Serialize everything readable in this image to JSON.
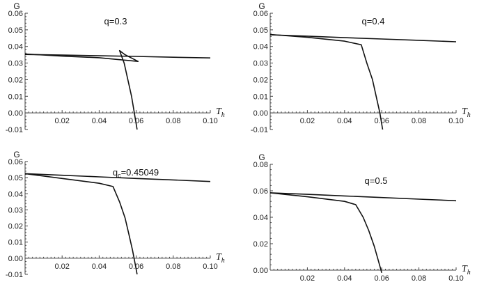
{
  "chart_data": [
    {
      "type": "line",
      "ylabel": "G",
      "xlabel": "T_h",
      "annotation": "q=0.3",
      "xlim": [
        0,
        0.1
      ],
      "ylim": [
        -0.01,
        0.06
      ],
      "xticks": [
        0.02,
        0.04,
        0.06,
        0.08,
        0.1
      ],
      "xtick_labels": [
        "0.02",
        "0.04",
        "0.06",
        "0.08",
        "0.10"
      ],
      "yticks": [
        -0.01,
        0.0,
        0.01,
        0.02,
        0.03,
        0.04,
        0.05,
        0.06
      ],
      "ytick_labels": [
        "-0.01",
        "0.00",
        "0.01",
        "0.02",
        "0.03",
        "0.04",
        "0.05",
        "0.06"
      ],
      "series": [
        {
          "x": [
            0.0,
            0.02,
            0.04,
            0.06,
            0.08,
            0.1
          ],
          "y": [
            0.0352,
            0.0348,
            0.0344,
            0.034,
            0.0335,
            0.0331
          ]
        },
        {
          "x": [
            0.0,
            0.02,
            0.04,
            0.061,
            0.054,
            0.051,
            0.0535,
            0.0555,
            0.0575,
            0.059,
            0.0605
          ],
          "y": [
            0.0355,
            0.0342,
            0.0332,
            0.031,
            0.035,
            0.0375,
            0.03,
            0.02,
            0.01,
            0.0,
            -0.01
          ]
        }
      ]
    },
    {
      "type": "line",
      "ylabel": "G",
      "xlabel": "T_h",
      "annotation": "q=0.4",
      "xlim": [
        0,
        0.1
      ],
      "ylim": [
        -0.01,
        0.06
      ],
      "xticks": [
        0.02,
        0.04,
        0.06,
        0.08,
        0.1
      ],
      "xtick_labels": [
        "0.02",
        "0.04",
        "0.06",
        "0.08",
        "0.10"
      ],
      "yticks": [
        -0.01,
        0.0,
        0.01,
        0.02,
        0.03,
        0.04,
        0.05,
        0.06
      ],
      "ytick_labels": [
        "-0.01",
        "0.00",
        "0.01",
        "0.02",
        "0.03",
        "0.04",
        "0.05",
        "0.06"
      ],
      "series": [
        {
          "x": [
            0.0,
            0.02,
            0.04,
            0.06,
            0.08,
            0.1
          ],
          "y": [
            0.047,
            0.0462,
            0.0453,
            0.0445,
            0.0437,
            0.0428
          ]
        },
        {
          "x": [
            0.0,
            0.02,
            0.04,
            0.049,
            0.052,
            0.055,
            0.057,
            0.059,
            0.0605
          ],
          "y": [
            0.0472,
            0.0455,
            0.0432,
            0.041,
            0.03,
            0.02,
            0.01,
            0.0,
            -0.01
          ]
        }
      ]
    },
    {
      "type": "line",
      "ylabel": "G",
      "xlabel": "T_h",
      "annotation": "q_c=0.45049",
      "xlim": [
        0,
        0.1
      ],
      "ylim": [
        -0.01,
        0.06
      ],
      "xticks": [
        0.02,
        0.04,
        0.06,
        0.08,
        0.1
      ],
      "xtick_labels": [
        "0.02",
        "0.04",
        "0.06",
        "0.08",
        "0.10"
      ],
      "yticks": [
        -0.01,
        0.0,
        0.01,
        0.02,
        0.03,
        0.04,
        0.05,
        0.06
      ],
      "ytick_labels": [
        "-0.01",
        "0.00",
        "0.01",
        "0.02",
        "0.03",
        "0.04",
        "0.05",
        "0.06"
      ],
      "series": [
        {
          "x": [
            0.0,
            0.02,
            0.04,
            0.06,
            0.08,
            0.1
          ],
          "y": [
            0.0525,
            0.0515,
            0.0505,
            0.0495,
            0.0486,
            0.0476
          ]
        },
        {
          "x": [
            0.0,
            0.02,
            0.04,
            0.0475,
            0.051,
            0.054,
            0.056,
            0.058,
            0.0595,
            0.0605
          ],
          "y": [
            0.0525,
            0.0495,
            0.0465,
            0.0445,
            0.035,
            0.025,
            0.015,
            0.005,
            -0.004,
            -0.01
          ]
        }
      ]
    },
    {
      "type": "line",
      "ylabel": "G",
      "xlabel": "T_h",
      "annotation": "q=0.5",
      "xlim": [
        0,
        0.1
      ],
      "ylim": [
        0.0,
        0.08
      ],
      "xticks": [
        0.02,
        0.04,
        0.06,
        0.08,
        0.1
      ],
      "xtick_labels": [
        "0.02",
        "0.04",
        "0.06",
        "0.08",
        "0.10"
      ],
      "yticks": [
        0.0,
        0.02,
        0.04,
        0.06,
        0.08
      ],
      "ytick_labels": [
        "0.00",
        "0.02",
        "0.04",
        "0.06",
        "0.08"
      ],
      "series": [
        {
          "x": [
            0.0,
            0.02,
            0.04,
            0.06,
            0.08,
            0.1
          ],
          "y": [
            0.0585,
            0.0573,
            0.0561,
            0.0549,
            0.0537,
            0.0525
          ]
        },
        {
          "x": [
            0.0,
            0.02,
            0.04,
            0.046,
            0.05,
            0.053,
            0.056,
            0.058,
            0.06
          ],
          "y": [
            0.0585,
            0.0555,
            0.052,
            0.0495,
            0.04,
            0.03,
            0.018,
            0.008,
            -0.002
          ]
        }
      ]
    }
  ]
}
